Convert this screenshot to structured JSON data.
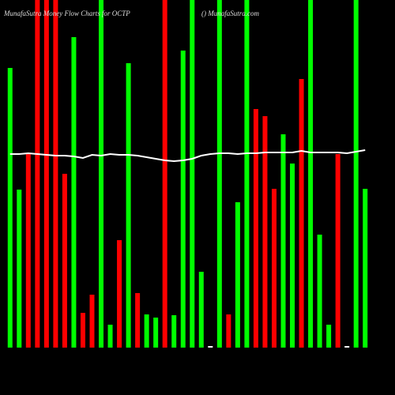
{
  "chart_data": {
    "type": "bar",
    "title": "MunafaSutra Money Flow Charts for OCTP",
    "subtitle": "() MunafaSutra.com",
    "categories": [
      null,
      null,
      null,
      null,
      null,
      null,
      null,
      null,
      null,
      null,
      null,
      null,
      null,
      null,
      null,
      null,
      null,
      null,
      null,
      null,
      null,
      null,
      null,
      null,
      null,
      null,
      null,
      null,
      null,
      null,
      null,
      null,
      null,
      null,
      null,
      null,
      null,
      null,
      null,
      null
    ],
    "values": [
      354,
      200,
      245,
      440,
      440,
      440,
      220,
      393,
      44,
      67,
      440,
      29,
      136,
      360,
      69,
      42,
      38,
      440,
      41,
      376,
      440,
      96,
      2,
      440,
      42,
      184,
      440,
      302,
      293,
      201,
      270,
      233,
      340,
      440,
      143,
      29,
      245,
      2,
      440,
      201
    ],
    "colors": [
      "#00ff00",
      "#00ff00",
      "#ff0000",
      "#ff0000",
      "#ff0000",
      "#ff0000",
      "#ff0000",
      "#00ff00",
      "#ff0000",
      "#ff0000",
      "#00ff00",
      "#00ff00",
      "#ff0000",
      "#00ff00",
      "#ff0000",
      "#00ff00",
      "#00ff00",
      "#ff0000",
      "#00ff00",
      "#00ff00",
      "#00ff00",
      "#00ff00",
      "#ffffff",
      "#00ff00",
      "#ff0000",
      "#00ff00",
      "#00ff00",
      "#ff0000",
      "#ff0000",
      "#ff0000",
      "#00ff00",
      "#00ff00",
      "#ff0000",
      "#00ff00",
      "#00ff00",
      "#00ff00",
      "#ff0000",
      "#ffffff",
      "#00ff00",
      "#00ff00"
    ],
    "line": {
      "color": "#ffffff",
      "values": [
        245,
        245,
        246,
        245,
        244,
        243,
        243,
        242,
        240,
        244,
        243,
        245,
        244,
        244,
        243,
        241,
        239,
        237,
        236,
        237,
        239,
        243,
        245,
        246,
        246,
        245,
        246,
        246,
        247,
        247,
        247,
        247,
        249,
        247,
        247,
        247,
        247,
        246,
        248,
        250
      ]
    },
    "ylim": [
      0,
      440
    ]
  }
}
